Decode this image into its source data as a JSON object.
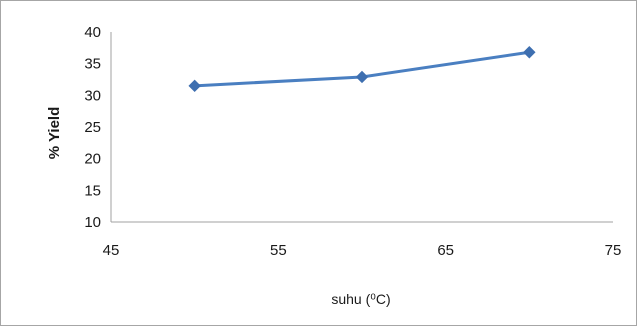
{
  "chart_data": {
    "type": "line",
    "title": "",
    "xlabel": "suhu (⁰C)",
    "ylabel": "% Yield",
    "xlim": [
      45,
      75
    ],
    "ylim": [
      10,
      40
    ],
    "x_ticks": [
      "45",
      "55",
      "65",
      "75"
    ],
    "y_ticks": [
      "10",
      "15",
      "20",
      "25",
      "30",
      "35",
      "40"
    ],
    "grid": false,
    "legend": "none",
    "series": [
      {
        "color": "#4a7fc1",
        "marker_color": "#3e6fb0",
        "marker": "diamond",
        "x": [
          50,
          60,
          70
        ],
        "y": [
          31.5,
          32.9,
          36.8
        ]
      }
    ]
  }
}
